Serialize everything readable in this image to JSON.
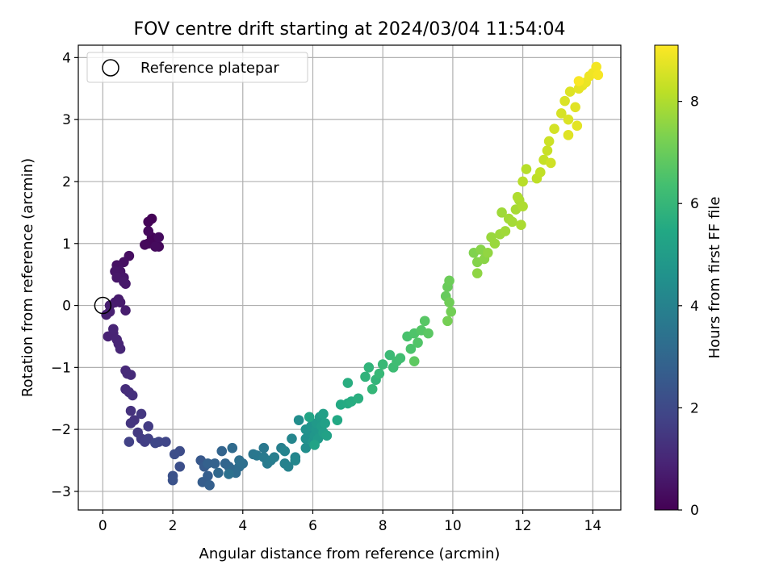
{
  "chart_data": {
    "type": "scatter",
    "title": "FOV centre drift starting at 2024/03/04 11:54:04",
    "xlabel": "Angular distance from reference (arcmin)",
    "ylabel": "Rotation from reference (arcmin)",
    "xlim": [
      -0.7,
      14.8
    ],
    "ylim": [
      -3.3,
      4.2
    ],
    "xticks": [
      0,
      2,
      4,
      6,
      8,
      10,
      12,
      14
    ],
    "yticks": [
      -3,
      -2,
      -1,
      0,
      1,
      2,
      3,
      4
    ],
    "grid": true,
    "legend": {
      "position": "top-left",
      "entries": [
        "Reference platepar"
      ]
    },
    "reference_point": {
      "x": 0,
      "y": 0
    },
    "colorbar": {
      "label": "Hours from first FF file",
      "range": [
        0,
        9.1
      ],
      "ticks": [
        0,
        2,
        4,
        6,
        8
      ],
      "colormap": "viridis"
    },
    "series": [
      {
        "marker_color_by": "hours",
        "points": [
          {
            "x": 1.4,
            "y": 1.4,
            "h": 0.05
          },
          {
            "x": 1.3,
            "y": 1.35,
            "h": 0.08
          },
          {
            "x": 1.4,
            "y": 1.1,
            "h": 0.1
          },
          {
            "x": 1.5,
            "y": 1.0,
            "h": 0.12
          },
          {
            "x": 1.3,
            "y": 1.0,
            "h": 0.15
          },
          {
            "x": 1.2,
            "y": 0.98,
            "h": 0.18
          },
          {
            "x": 1.6,
            "y": 0.95,
            "h": 0.2
          },
          {
            "x": 1.3,
            "y": 1.2,
            "h": 0.22
          },
          {
            "x": 1.5,
            "y": 0.95,
            "h": 0.25
          },
          {
            "x": 1.6,
            "y": 1.1,
            "h": 0.27
          },
          {
            "x": 0.75,
            "y": 0.8,
            "h": 0.35
          },
          {
            "x": 0.6,
            "y": 0.7,
            "h": 0.4
          },
          {
            "x": 0.4,
            "y": 0.65,
            "h": 0.45
          },
          {
            "x": 0.5,
            "y": 0.55,
            "h": 0.5
          },
          {
            "x": 0.35,
            "y": 0.55,
            "h": 0.52
          },
          {
            "x": 0.6,
            "y": 0.45,
            "h": 0.55
          },
          {
            "x": 0.4,
            "y": 0.45,
            "h": 0.58
          },
          {
            "x": 0.65,
            "y": 0.35,
            "h": 0.6
          },
          {
            "x": 0.6,
            "y": 0.38,
            "h": 0.62
          },
          {
            "x": 0.45,
            "y": 0.1,
            "h": 0.66
          },
          {
            "x": 0.35,
            "y": 0.05,
            "h": 0.68
          },
          {
            "x": 0.5,
            "y": 0.05,
            "h": 0.7
          },
          {
            "x": 0.65,
            "y": -0.08,
            "h": 0.72
          },
          {
            "x": 0.2,
            "y": 0.0,
            "h": 0.75
          },
          {
            "x": 0.1,
            "y": -0.15,
            "h": 0.78
          },
          {
            "x": 0.2,
            "y": -0.1,
            "h": 0.8
          },
          {
            "x": 0.15,
            "y": -0.5,
            "h": 0.85
          },
          {
            "x": 0.3,
            "y": -0.45,
            "h": 0.88
          },
          {
            "x": 0.3,
            "y": -0.38,
            "h": 0.9
          },
          {
            "x": 0.4,
            "y": -0.55,
            "h": 0.92
          },
          {
            "x": 0.45,
            "y": -0.62,
            "h": 0.95
          },
          {
            "x": 0.5,
            "y": -0.7,
            "h": 0.98
          },
          {
            "x": 0.65,
            "y": -1.05,
            "h": 1.05
          },
          {
            "x": 0.7,
            "y": -1.1,
            "h": 1.1
          },
          {
            "x": 0.8,
            "y": -1.12,
            "h": 1.12
          },
          {
            "x": 0.65,
            "y": -1.35,
            "h": 1.18
          },
          {
            "x": 0.75,
            "y": -1.4,
            "h": 1.2
          },
          {
            "x": 0.85,
            "y": -1.45,
            "h": 1.25
          },
          {
            "x": 0.8,
            "y": -1.7,
            "h": 1.3
          },
          {
            "x": 0.9,
            "y": -1.85,
            "h": 1.35
          },
          {
            "x": 0.8,
            "y": -1.9,
            "h": 1.4
          },
          {
            "x": 1.1,
            "y": -1.75,
            "h": 1.45
          },
          {
            "x": 1.0,
            "y": -2.05,
            "h": 1.5
          },
          {
            "x": 1.1,
            "y": -2.15,
            "h": 1.55
          },
          {
            "x": 1.3,
            "y": -1.95,
            "h": 1.6
          },
          {
            "x": 1.2,
            "y": -2.2,
            "h": 1.65
          },
          {
            "x": 1.3,
            "y": -2.15,
            "h": 1.7
          },
          {
            "x": 0.75,
            "y": -2.2,
            "h": 1.75
          },
          {
            "x": 1.6,
            "y": -2.2,
            "h": 1.85
          },
          {
            "x": 1.8,
            "y": -2.2,
            "h": 1.9
          },
          {
            "x": 1.5,
            "y": -2.22,
            "h": 1.95
          },
          {
            "x": 2.2,
            "y": -2.35,
            "h": 2.1
          },
          {
            "x": 2.05,
            "y": -2.4,
            "h": 2.15
          },
          {
            "x": 2.2,
            "y": -2.6,
            "h": 2.2
          },
          {
            "x": 2.0,
            "y": -2.75,
            "h": 2.25
          },
          {
            "x": 2.0,
            "y": -2.82,
            "h": 2.3
          },
          {
            "x": 2.8,
            "y": -2.5,
            "h": 2.5
          },
          {
            "x": 2.9,
            "y": -2.6,
            "h": 2.6
          },
          {
            "x": 2.85,
            "y": -2.85,
            "h": 2.65
          },
          {
            "x": 3.0,
            "y": -2.75,
            "h": 2.7
          },
          {
            "x": 3.05,
            "y": -2.9,
            "h": 2.75
          },
          {
            "x": 3.0,
            "y": -2.55,
            "h": 2.8
          },
          {
            "x": 3.2,
            "y": -2.55,
            "h": 2.85
          },
          {
            "x": 3.4,
            "y": -2.35,
            "h": 2.9
          },
          {
            "x": 3.5,
            "y": -2.55,
            "h": 2.95
          },
          {
            "x": 3.6,
            "y": -2.6,
            "h": 3.0
          },
          {
            "x": 3.3,
            "y": -2.7,
            "h": 3.05
          },
          {
            "x": 3.7,
            "y": -2.65,
            "h": 3.1
          },
          {
            "x": 3.7,
            "y": -2.3,
            "h": 3.15
          },
          {
            "x": 3.8,
            "y": -2.7,
            "h": 3.2
          },
          {
            "x": 3.9,
            "y": -2.6,
            "h": 3.25
          },
          {
            "x": 4.0,
            "y": -2.55,
            "h": 3.3
          },
          {
            "x": 3.9,
            "y": -2.5,
            "h": 3.35
          },
          {
            "x": 3.6,
            "y": -2.72,
            "h": 3.4
          },
          {
            "x": 4.3,
            "y": -2.4,
            "h": 3.55
          },
          {
            "x": 4.4,
            "y": -2.42,
            "h": 3.6
          },
          {
            "x": 4.6,
            "y": -2.3,
            "h": 3.65
          },
          {
            "x": 4.6,
            "y": -2.45,
            "h": 3.7
          },
          {
            "x": 4.7,
            "y": -2.55,
            "h": 3.75
          },
          {
            "x": 4.8,
            "y": -2.5,
            "h": 3.8
          },
          {
            "x": 4.9,
            "y": -2.45,
            "h": 3.85
          },
          {
            "x": 5.1,
            "y": -2.3,
            "h": 3.9
          },
          {
            "x": 5.2,
            "y": -2.55,
            "h": 3.95
          },
          {
            "x": 5.3,
            "y": -2.6,
            "h": 4.0
          },
          {
            "x": 5.2,
            "y": -2.35,
            "h": 4.05
          },
          {
            "x": 5.5,
            "y": -2.45,
            "h": 4.1
          },
          {
            "x": 5.4,
            "y": -2.15,
            "h": 4.15
          },
          {
            "x": 5.5,
            "y": -2.5,
            "h": 4.2
          },
          {
            "x": 5.6,
            "y": -1.85,
            "h": 4.4
          },
          {
            "x": 5.8,
            "y": -2.3,
            "h": 4.45
          },
          {
            "x": 5.8,
            "y": -2.15,
            "h": 4.5
          },
          {
            "x": 5.9,
            "y": -2.05,
            "h": 4.55
          },
          {
            "x": 5.8,
            "y": -2.0,
            "h": 4.6
          },
          {
            "x": 5.95,
            "y": -1.95,
            "h": 4.65
          },
          {
            "x": 6.0,
            "y": -2.2,
            "h": 4.7
          },
          {
            "x": 6.05,
            "y": -2.1,
            "h": 4.75
          },
          {
            "x": 6.1,
            "y": -2.0,
            "h": 4.8
          },
          {
            "x": 6.1,
            "y": -1.9,
            "h": 4.85
          },
          {
            "x": 6.15,
            "y": -2.15,
            "h": 4.9
          },
          {
            "x": 6.2,
            "y": -1.8,
            "h": 4.95
          },
          {
            "x": 6.25,
            "y": -1.95,
            "h": 5.0
          },
          {
            "x": 6.3,
            "y": -2.05,
            "h": 5.05
          },
          {
            "x": 6.3,
            "y": -1.75,
            "h": 5.1
          },
          {
            "x": 6.35,
            "y": -1.9,
            "h": 5.15
          },
          {
            "x": 6.4,
            "y": -2.1,
            "h": 5.2
          },
          {
            "x": 6.05,
            "y": -2.25,
            "h": 5.25
          },
          {
            "x": 5.9,
            "y": -1.8,
            "h": 5.3
          },
          {
            "x": 6.7,
            "y": -1.85,
            "h": 5.45
          },
          {
            "x": 6.8,
            "y": -1.6,
            "h": 5.5
          },
          {
            "x": 7.0,
            "y": -1.58,
            "h": 5.55
          },
          {
            "x": 7.1,
            "y": -1.55,
            "h": 5.6
          },
          {
            "x": 7.0,
            "y": -1.25,
            "h": 5.65
          },
          {
            "x": 7.3,
            "y": -1.5,
            "h": 5.7
          },
          {
            "x": 7.5,
            "y": -1.15,
            "h": 5.85
          },
          {
            "x": 7.6,
            "y": -1.0,
            "h": 5.9
          },
          {
            "x": 7.8,
            "y": -1.2,
            "h": 5.95
          },
          {
            "x": 7.7,
            "y": -1.35,
            "h": 6.0
          },
          {
            "x": 7.9,
            "y": -1.1,
            "h": 6.05
          },
          {
            "x": 8.0,
            "y": -0.95,
            "h": 6.1
          },
          {
            "x": 8.2,
            "y": -0.8,
            "h": 6.15
          },
          {
            "x": 8.3,
            "y": -1.0,
            "h": 6.2
          },
          {
            "x": 8.4,
            "y": -0.9,
            "h": 6.25
          },
          {
            "x": 8.5,
            "y": -0.85,
            "h": 6.3
          },
          {
            "x": 8.7,
            "y": -0.5,
            "h": 6.45
          },
          {
            "x": 8.8,
            "y": -0.7,
            "h": 6.5
          },
          {
            "x": 8.9,
            "y": -0.45,
            "h": 6.55
          },
          {
            "x": 9.0,
            "y": -0.6,
            "h": 6.6
          },
          {
            "x": 9.1,
            "y": -0.4,
            "h": 6.65
          },
          {
            "x": 9.2,
            "y": -0.25,
            "h": 6.7
          },
          {
            "x": 9.3,
            "y": -0.45,
            "h": 6.75
          },
          {
            "x": 8.9,
            "y": -0.9,
            "h": 6.8
          },
          {
            "x": 9.8,
            "y": 0.15,
            "h": 6.95
          },
          {
            "x": 9.85,
            "y": 0.3,
            "h": 7.0
          },
          {
            "x": 9.9,
            "y": 0.4,
            "h": 7.05
          },
          {
            "x": 9.9,
            "y": 0.05,
            "h": 7.1
          },
          {
            "x": 9.95,
            "y": -0.1,
            "h": 7.15
          },
          {
            "x": 9.85,
            "y": -0.25,
            "h": 7.2
          },
          {
            "x": 10.6,
            "y": 0.85,
            "h": 7.35
          },
          {
            "x": 10.7,
            "y": 0.7,
            "h": 7.4
          },
          {
            "x": 10.8,
            "y": 0.9,
            "h": 7.45
          },
          {
            "x": 10.9,
            "y": 0.75,
            "h": 7.5
          },
          {
            "x": 10.7,
            "y": 0.52,
            "h": 7.55
          },
          {
            "x": 11.0,
            "y": 0.85,
            "h": 7.6
          },
          {
            "x": 11.1,
            "y": 1.1,
            "h": 7.7
          },
          {
            "x": 11.2,
            "y": 1.0,
            "h": 7.72
          },
          {
            "x": 11.35,
            "y": 1.15,
            "h": 7.75
          },
          {
            "x": 11.4,
            "y": 1.5,
            "h": 7.78
          },
          {
            "x": 11.5,
            "y": 1.2,
            "h": 7.8
          },
          {
            "x": 11.6,
            "y": 1.4,
            "h": 7.83
          },
          {
            "x": 11.7,
            "y": 1.35,
            "h": 7.86
          },
          {
            "x": 11.8,
            "y": 1.55,
            "h": 7.89
          },
          {
            "x": 11.9,
            "y": 1.7,
            "h": 7.92
          },
          {
            "x": 11.95,
            "y": 1.3,
            "h": 7.95
          },
          {
            "x": 12.0,
            "y": 1.6,
            "h": 7.98
          },
          {
            "x": 11.85,
            "y": 1.75,
            "h": 8.0
          },
          {
            "x": 12.1,
            "y": 2.2,
            "h": 8.1
          },
          {
            "x": 12.0,
            "y": 2.0,
            "h": 8.12
          },
          {
            "x": 12.4,
            "y": 2.05,
            "h": 8.2
          },
          {
            "x": 12.5,
            "y": 2.15,
            "h": 8.25
          },
          {
            "x": 12.6,
            "y": 2.35,
            "h": 8.3
          },
          {
            "x": 12.7,
            "y": 2.5,
            "h": 8.35
          },
          {
            "x": 12.75,
            "y": 2.65,
            "h": 8.4
          },
          {
            "x": 12.8,
            "y": 2.3,
            "h": 8.45
          },
          {
            "x": 12.9,
            "y": 2.85,
            "h": 8.5
          },
          {
            "x": 13.1,
            "y": 3.1,
            "h": 8.55
          },
          {
            "x": 13.2,
            "y": 3.3,
            "h": 8.6
          },
          {
            "x": 13.3,
            "y": 3.0,
            "h": 8.62
          },
          {
            "x": 13.35,
            "y": 3.45,
            "h": 8.65
          },
          {
            "x": 13.3,
            "y": 2.75,
            "h": 8.68
          },
          {
            "x": 13.5,
            "y": 3.2,
            "h": 8.7
          },
          {
            "x": 13.55,
            "y": 2.9,
            "h": 8.73
          },
          {
            "x": 13.6,
            "y": 3.5,
            "h": 8.76
          },
          {
            "x": 13.7,
            "y": 3.55,
            "h": 8.8
          },
          {
            "x": 13.8,
            "y": 3.6,
            "h": 8.84
          },
          {
            "x": 13.9,
            "y": 3.7,
            "h": 8.88
          },
          {
            "x": 14.0,
            "y": 3.75,
            "h": 8.92
          },
          {
            "x": 14.1,
            "y": 3.85,
            "h": 8.96
          },
          {
            "x": 14.15,
            "y": 3.72,
            "h": 9.0
          },
          {
            "x": 13.6,
            "y": 3.62,
            "h": 9.05
          }
        ]
      }
    ]
  }
}
